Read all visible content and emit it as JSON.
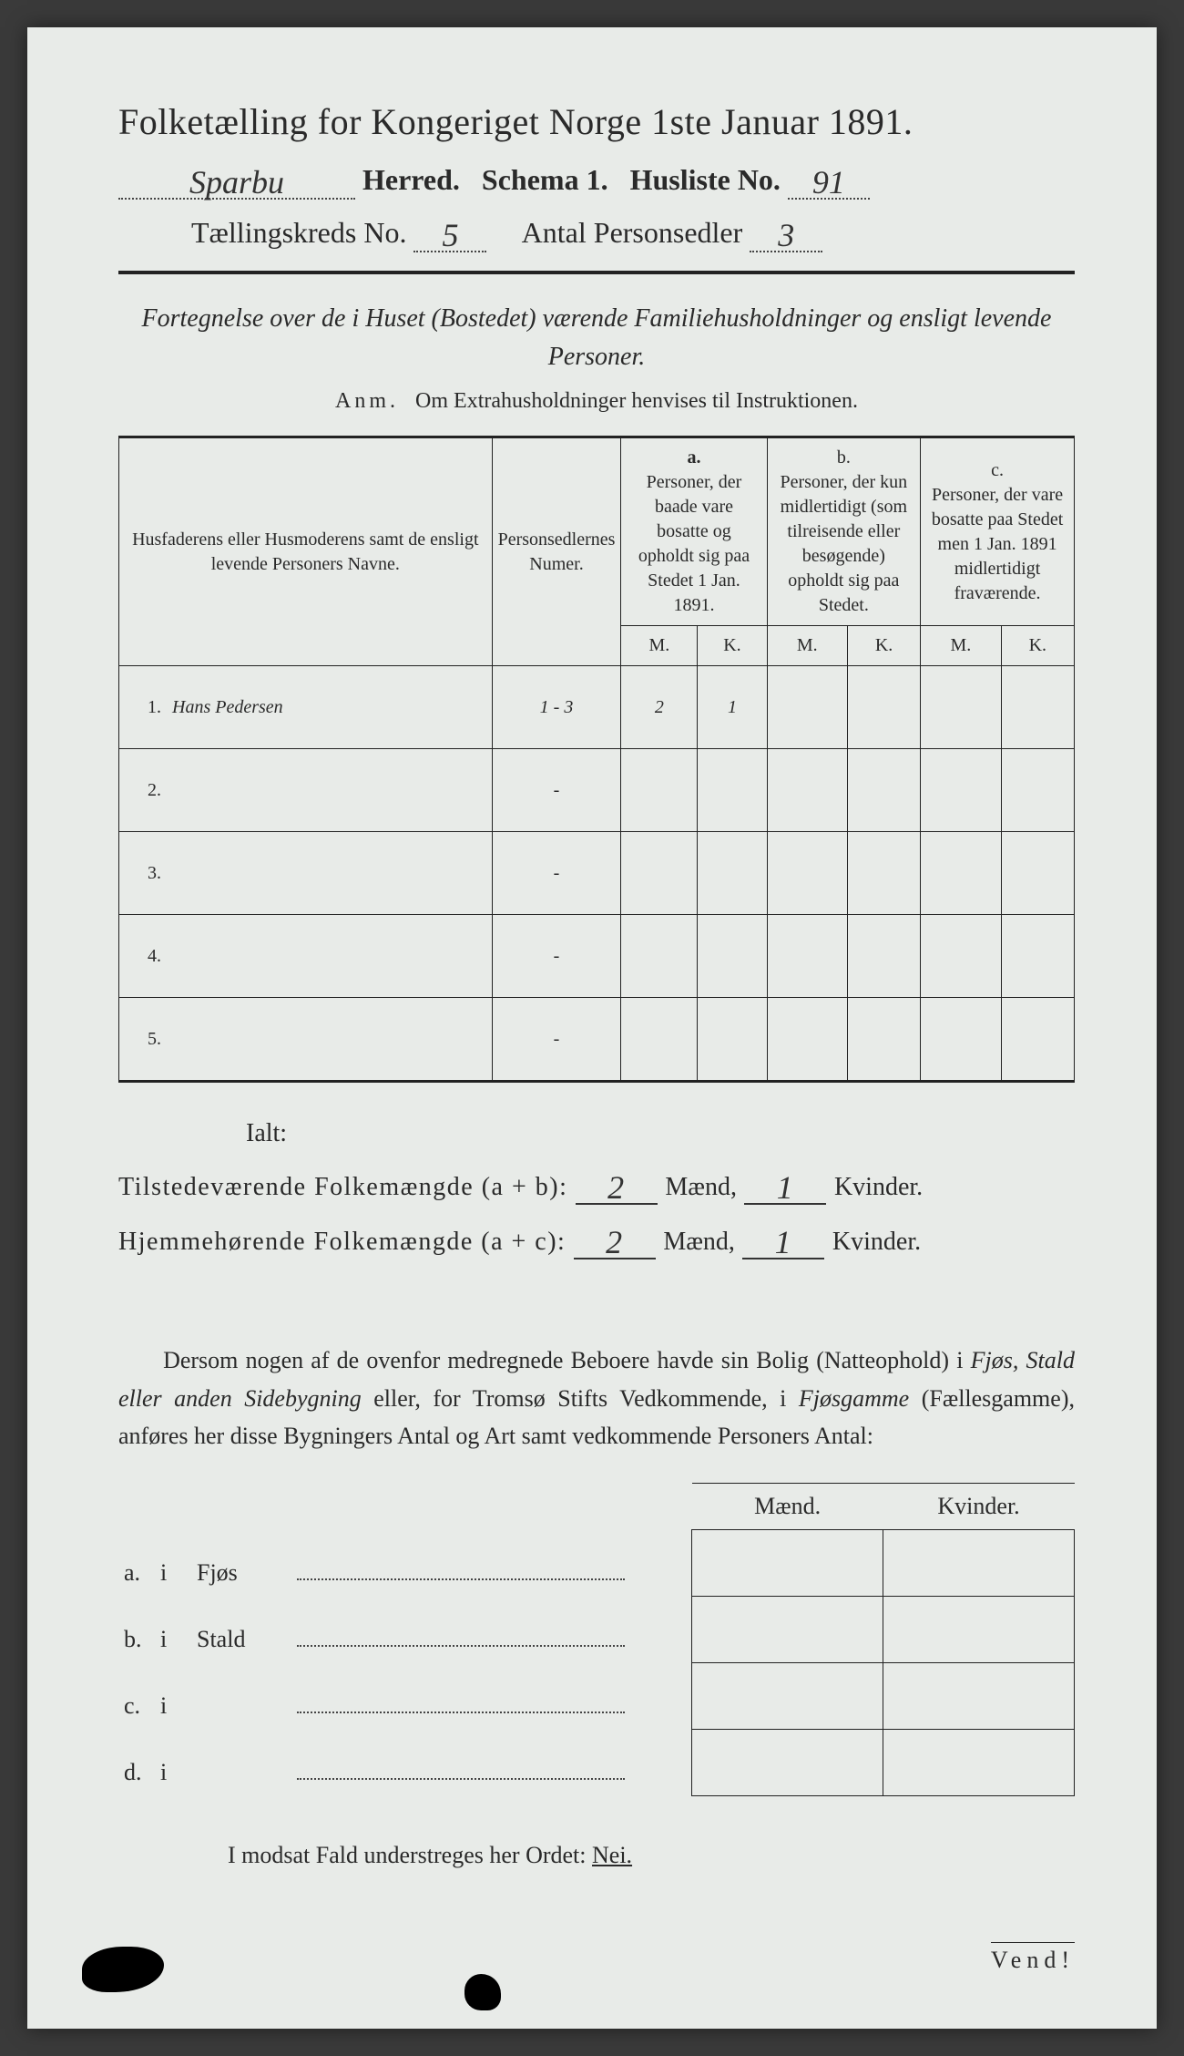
{
  "header": {
    "title": "Folketælling for Kongeriget Norge 1ste Januar 1891.",
    "herred_value": "Sparbu",
    "herred_label": "Herred.",
    "schema_label": "Schema 1.",
    "husliste_label": "Husliste No.",
    "husliste_value": "91",
    "kreds_label": "Tællingskreds No.",
    "kreds_value": "5",
    "antal_label": "Antal Personsedler",
    "antal_value": "3"
  },
  "subtitle": "Fortegnelse over de i Huset (Bostedet) værende Familiehusholdninger og ensligt levende Personer.",
  "anm_label": "Anm.",
  "anm_text": "Om Extrahusholdninger henvises til Instruktionen.",
  "table": {
    "col1": "Husfaderens eller Husmoderens samt de ensligt levende Personers Navne.",
    "col2": "Personsedlernes Numer.",
    "col_a_label": "a.",
    "col_a": "Personer, der baade vare bosatte og opholdt sig paa Stedet 1 Jan. 1891.",
    "col_b_label": "b.",
    "col_b": "Personer, der kun midlertidigt (som tilreisende eller besøgende) opholdt sig paa Stedet.",
    "col_c_label": "c.",
    "col_c": "Personer, der vare bosatte paa Stedet men 1 Jan. 1891 midlertidigt fraværende.",
    "m": "M.",
    "k": "K.",
    "rows": [
      {
        "num": "1.",
        "name": "Hans Pedersen",
        "sedler": "1 - 3",
        "a_m": "2",
        "a_k": "1",
        "b_m": "",
        "b_k": "",
        "c_m": "",
        "c_k": ""
      },
      {
        "num": "2.",
        "name": "",
        "sedler": "-",
        "a_m": "",
        "a_k": "",
        "b_m": "",
        "b_k": "",
        "c_m": "",
        "c_k": ""
      },
      {
        "num": "3.",
        "name": "",
        "sedler": "-",
        "a_m": "",
        "a_k": "",
        "b_m": "",
        "b_k": "",
        "c_m": "",
        "c_k": ""
      },
      {
        "num": "4.",
        "name": "",
        "sedler": "-",
        "a_m": "",
        "a_k": "",
        "b_m": "",
        "b_k": "",
        "c_m": "",
        "c_k": ""
      },
      {
        "num": "5.",
        "name": "",
        "sedler": "-",
        "a_m": "",
        "a_k": "",
        "b_m": "",
        "b_k": "",
        "c_m": "",
        "c_k": ""
      }
    ]
  },
  "totals": {
    "ialt": "Ialt:",
    "line1_label": "Tilstedeværende Folkemængde (a + b):",
    "line1_m": "2",
    "line1_k": "1",
    "line2_label": "Hjemmehørende Folkemængde (a + c):",
    "line2_m": "2",
    "line2_k": "1",
    "maend": "Mænd,",
    "kvinder": "Kvinder."
  },
  "paragraph": "Dersom nogen af de ovenfor medregnede Beboere havde sin Bolig (Natteophold) i Fjøs, Stald eller anden Sidebygning eller, for Tromsø Stifts Vedkommende, i Fjøsgamme (Fællesgamme), anføres her disse Bygningers Antal og Art samt vedkommende Personers Antal:",
  "buildings": {
    "maend": "Mænd.",
    "kvinder": "Kvinder.",
    "rows": [
      {
        "letter": "a.",
        "i": "i",
        "label": "Fjøs"
      },
      {
        "letter": "b.",
        "i": "i",
        "label": "Stald"
      },
      {
        "letter": "c.",
        "i": "i",
        "label": ""
      },
      {
        "letter": "d.",
        "i": "i",
        "label": ""
      }
    ]
  },
  "footer": {
    "text": "I modsat Fald understreges her Ordet:",
    "nei": "Nei.",
    "vend": "Vend!"
  },
  "colors": {
    "paper": "#e8ebe8",
    "ink": "#2a2a2a",
    "hand": "#333333"
  }
}
